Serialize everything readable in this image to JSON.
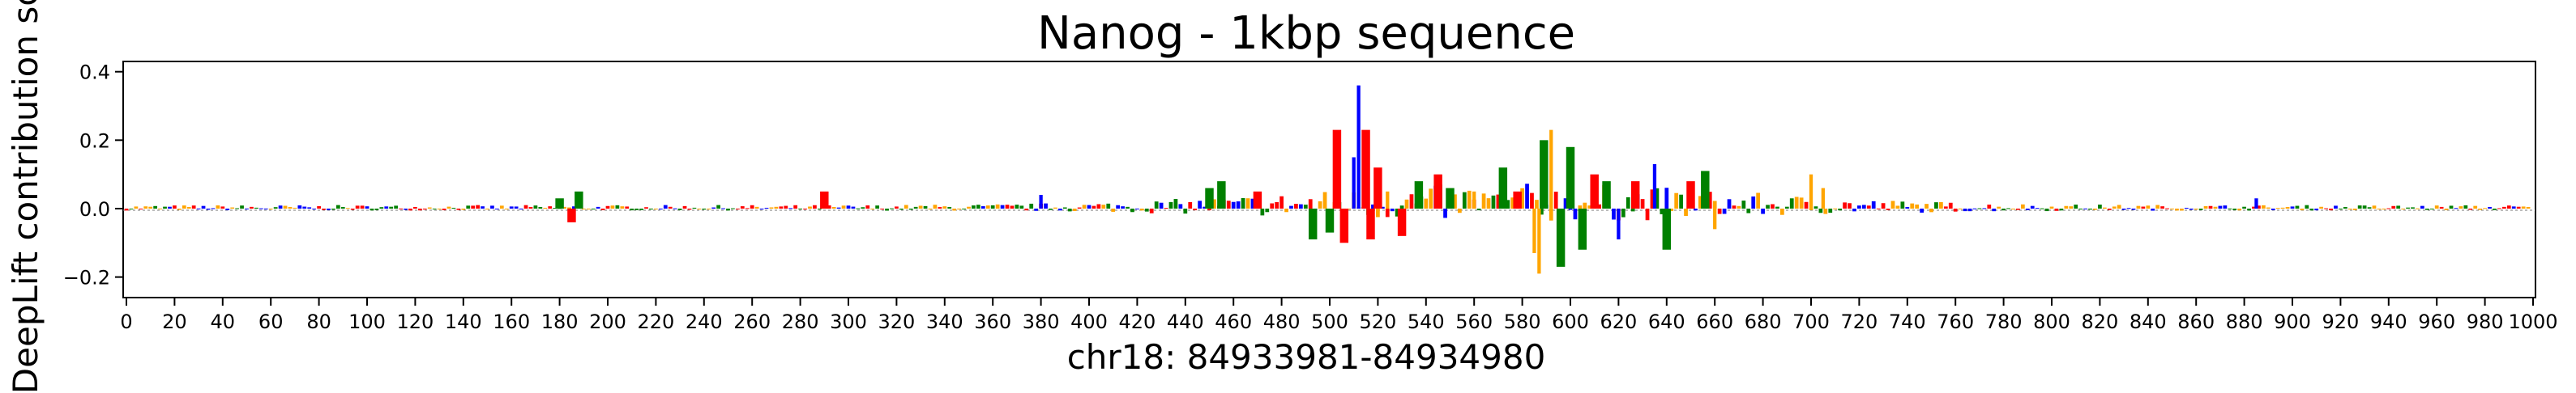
{
  "chart_data": {
    "type": "bar",
    "title": "Nanog - 1kbp sequence",
    "xlabel": "chr18: 84933981-84934980",
    "ylabel": "DeepLift contribution score",
    "xlim": [
      0,
      1000
    ],
    "ylim": [
      -0.26,
      0.43
    ],
    "x_ticks": [
      0,
      20,
      40,
      60,
      80,
      100,
      120,
      140,
      160,
      180,
      200,
      220,
      240,
      260,
      280,
      300,
      320,
      340,
      360,
      380,
      400,
      420,
      440,
      460,
      480,
      500,
      520,
      540,
      560,
      580,
      600,
      620,
      640,
      660,
      680,
      700,
      720,
      740,
      760,
      780,
      800,
      820,
      840,
      860,
      880,
      900,
      920,
      940,
      960,
      980,
      1000
    ],
    "y_ticks": [
      -0.2,
      0.0,
      0.2,
      0.4
    ],
    "y_tick_labels": [
      "−0.2",
      "0.0",
      "0.2",
      "0.4"
    ],
    "series_colors": {
      "A": "#008000",
      "C": "#0000ff",
      "G": "#ffa500",
      "T": "#ff0000"
    },
    "bars": [
      {
        "x": 180,
        "y": 0.03,
        "base": "A"
      },
      {
        "x": 188,
        "y": 0.05,
        "base": "A"
      },
      {
        "x": 185,
        "y": -0.04,
        "base": "T"
      },
      {
        "x": 290,
        "y": 0.05,
        "base": "T"
      },
      {
        "x": 380,
        "y": 0.04,
        "base": "C"
      },
      {
        "x": 450,
        "y": 0.06,
        "base": "A"
      },
      {
        "x": 455,
        "y": 0.08,
        "base": "A"
      },
      {
        "x": 470,
        "y": 0.05,
        "base": "T"
      },
      {
        "x": 493,
        "y": -0.09,
        "base": "A"
      },
      {
        "x": 500,
        "y": -0.07,
        "base": "A"
      },
      {
        "x": 503,
        "y": 0.23,
        "base": "T"
      },
      {
        "x": 506,
        "y": -0.1,
        "base": "T"
      },
      {
        "x": 510,
        "y": 0.15,
        "base": "C"
      },
      {
        "x": 512,
        "y": 0.36,
        "base": "C"
      },
      {
        "x": 515,
        "y": 0.23,
        "base": "T"
      },
      {
        "x": 517,
        "y": -0.09,
        "base": "T"
      },
      {
        "x": 520,
        "y": 0.12,
        "base": "T"
      },
      {
        "x": 524,
        "y": 0.05,
        "base": "G"
      },
      {
        "x": 530,
        "y": -0.08,
        "base": "T"
      },
      {
        "x": 537,
        "y": 0.08,
        "base": "A"
      },
      {
        "x": 545,
        "y": 0.1,
        "base": "T"
      },
      {
        "x": 550,
        "y": 0.06,
        "base": "A"
      },
      {
        "x": 560,
        "y": 0.05,
        "base": "G"
      },
      {
        "x": 572,
        "y": 0.12,
        "base": "A"
      },
      {
        "x": 578,
        "y": 0.05,
        "base": "T"
      },
      {
        "x": 585,
        "y": -0.13,
        "base": "G"
      },
      {
        "x": 587,
        "y": -0.19,
        "base": "G"
      },
      {
        "x": 589,
        "y": 0.2,
        "base": "A"
      },
      {
        "x": 592,
        "y": 0.23,
        "base": "G"
      },
      {
        "x": 596,
        "y": -0.17,
        "base": "A"
      },
      {
        "x": 600,
        "y": 0.18,
        "base": "A"
      },
      {
        "x": 605,
        "y": -0.12,
        "base": "A"
      },
      {
        "x": 610,
        "y": 0.1,
        "base": "T"
      },
      {
        "x": 615,
        "y": 0.08,
        "base": "A"
      },
      {
        "x": 620,
        "y": -0.09,
        "base": "C"
      },
      {
        "x": 627,
        "y": 0.08,
        "base": "T"
      },
      {
        "x": 635,
        "y": 0.13,
        "base": "C"
      },
      {
        "x": 640,
        "y": -0.12,
        "base": "A"
      },
      {
        "x": 650,
        "y": 0.08,
        "base": "T"
      },
      {
        "x": 656,
        "y": 0.11,
        "base": "A"
      },
      {
        "x": 660,
        "y": -0.06,
        "base": "G"
      },
      {
        "x": 700,
        "y": 0.1,
        "base": "G"
      },
      {
        "x": 705,
        "y": 0.06,
        "base": "G"
      },
      {
        "x": 885,
        "y": 0.03,
        "base": "C"
      }
    ]
  }
}
